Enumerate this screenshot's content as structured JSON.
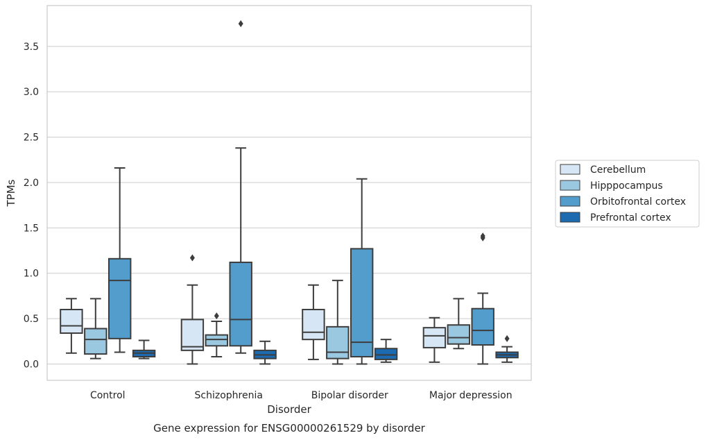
{
  "chart_data": {
    "type": "box",
    "title": "",
    "caption": "Gene expression for ENSG00000261529 by disorder",
    "xlabel": "Disorder",
    "ylabel": "TPMs",
    "ylim": [
      -0.18,
      3.95
    ],
    "yticks": [
      "0.0",
      "0.5",
      "1.0",
      "1.5",
      "2.0",
      "2.5",
      "3.0",
      "3.5"
    ],
    "grid": "y",
    "legend_position": "right",
    "categories": [
      "Control",
      "Schizophrenia",
      "Bipolar disorder",
      "Major depression"
    ],
    "series": [
      {
        "name": "Cerebellum",
        "color": "#d6e6f4",
        "boxes": [
          {
            "whislo": 0.12,
            "q1": 0.34,
            "med": 0.42,
            "q3": 0.6,
            "whishi": 0.72,
            "fliers": []
          },
          {
            "whislo": 0.0,
            "q1": 0.15,
            "med": 0.19,
            "q3": 0.49,
            "whishi": 0.87,
            "fliers": [
              1.17
            ]
          },
          {
            "whislo": 0.05,
            "q1": 0.27,
            "med": 0.35,
            "q3": 0.6,
            "whishi": 0.87,
            "fliers": []
          },
          {
            "whislo": 0.02,
            "q1": 0.18,
            "med": 0.31,
            "q3": 0.4,
            "whishi": 0.51,
            "fliers": []
          }
        ]
      },
      {
        "name": "Hipppocampus",
        "color": "#9ac8e0",
        "boxes": [
          {
            "whislo": 0.06,
            "q1": 0.11,
            "med": 0.27,
            "q3": 0.39,
            "whishi": 0.72,
            "fliers": []
          },
          {
            "whislo": 0.08,
            "q1": 0.2,
            "med": 0.27,
            "q3": 0.32,
            "whishi": 0.47,
            "fliers": [
              0.53
            ]
          },
          {
            "whislo": 0.0,
            "q1": 0.06,
            "med": 0.13,
            "q3": 0.41,
            "whishi": 0.92,
            "fliers": []
          },
          {
            "whislo": 0.17,
            "q1": 0.22,
            "med": 0.29,
            "q3": 0.43,
            "whishi": 0.72,
            "fliers": []
          }
        ]
      },
      {
        "name": "Orbitofrontal cortex",
        "color": "#529dcc",
        "boxes": [
          {
            "whislo": 0.13,
            "q1": 0.28,
            "med": 0.92,
            "q3": 1.16,
            "whishi": 2.16,
            "fliers": []
          },
          {
            "whislo": 0.12,
            "q1": 0.2,
            "med": 0.49,
            "q3": 1.12,
            "whishi": 2.38,
            "fliers": [
              3.75
            ]
          },
          {
            "whislo": 0.0,
            "q1": 0.08,
            "med": 0.24,
            "q3": 1.27,
            "whishi": 2.04,
            "fliers": []
          },
          {
            "whislo": 0.0,
            "q1": 0.21,
            "med": 0.37,
            "q3": 0.61,
            "whishi": 0.78,
            "fliers": [
              1.39,
              1.41
            ]
          }
        ]
      },
      {
        "name": "Prefrontal cortex",
        "color": "#1c6aaf",
        "boxes": [
          {
            "whislo": 0.06,
            "q1": 0.08,
            "med": 0.12,
            "q3": 0.15,
            "whishi": 0.26,
            "fliers": []
          },
          {
            "whislo": 0.0,
            "q1": 0.06,
            "med": 0.1,
            "q3": 0.15,
            "whishi": 0.25,
            "fliers": []
          },
          {
            "whislo": 0.02,
            "q1": 0.05,
            "med": 0.1,
            "q3": 0.17,
            "whishi": 0.27,
            "fliers": []
          },
          {
            "whislo": 0.02,
            "q1": 0.07,
            "med": 0.1,
            "q3": 0.13,
            "whishi": 0.19,
            "fliers": [
              0.28
            ]
          }
        ]
      }
    ]
  }
}
